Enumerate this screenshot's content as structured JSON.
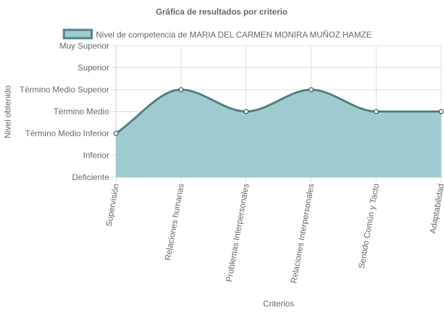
{
  "chart_data": {
    "type": "area",
    "title": "Gráfica de resultados por criterio",
    "xlabel": "Criterios",
    "ylabel": "Nivel obtenido",
    "categories": [
      "Supervisión",
      "Relaciones humanas",
      "Problemas Interpersonales",
      "Relaciones Interpersonales",
      "Sentido Común y Tacto",
      "Adaptabilidad"
    ],
    "y_levels": [
      "Deficiente",
      "Inferior",
      "Término Medio Inferior",
      "Término Medio",
      "Término Medio Superior",
      "Superior",
      "Muy Superior"
    ],
    "series": [
      {
        "name": "Nivel de competencia de MARIA DEL CARMEN MONIRA MUÑOZ HAMZE",
        "values": [
          2,
          4,
          3,
          4,
          3,
          3
        ],
        "color": "#4e7f84",
        "fill": "#9fcbd0"
      }
    ],
    "ylim": [
      0,
      6
    ],
    "grid": true,
    "legend": "top"
  }
}
